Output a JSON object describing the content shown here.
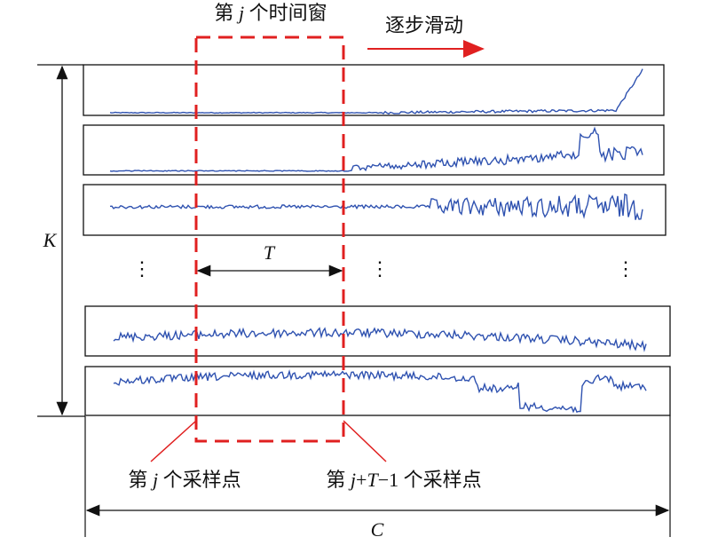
{
  "title": {
    "pre": "第 ",
    "var": "j",
    "post": " 个时间窗"
  },
  "slide_label": "逐步滑动",
  "k_label": "K",
  "t_label": "T",
  "c_label": "C",
  "ellipsis": [
    "⋮",
    "⋮",
    "⋮"
  ],
  "start_label": {
    "pre": "第 ",
    "var": "j",
    "post": " 个采样点"
  },
  "end_label": {
    "pre": "第 ",
    "var1": "j",
    "op": "+",
    "var2": "T",
    "post": "−1 个采样点"
  }
}
